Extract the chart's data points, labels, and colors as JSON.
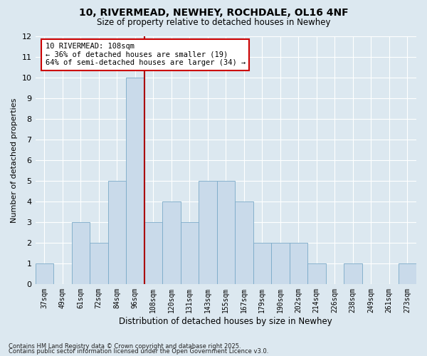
{
  "title1": "10, RIVERMEAD, NEWHEY, ROCHDALE, OL16 4NF",
  "title2": "Size of property relative to detached houses in Newhey",
  "xlabel": "Distribution of detached houses by size in Newhey",
  "ylabel": "Number of detached properties",
  "categories": [
    "37sqm",
    "49sqm",
    "61sqm",
    "72sqm",
    "84sqm",
    "96sqm",
    "108sqm",
    "120sqm",
    "131sqm",
    "143sqm",
    "155sqm",
    "167sqm",
    "179sqm",
    "190sqm",
    "202sqm",
    "214sqm",
    "226sqm",
    "238sqm",
    "249sqm",
    "261sqm",
    "273sqm"
  ],
  "values": [
    1,
    0,
    3,
    2,
    5,
    10,
    3,
    4,
    3,
    5,
    5,
    4,
    2,
    2,
    2,
    1,
    0,
    1,
    0,
    0,
    1
  ],
  "bar_color": "#c9daea",
  "bar_edgecolor": "#7aaac8",
  "vline_index": 5,
  "vline_color": "#aa0000",
  "annotation_title": "10 RIVERMEAD: 108sqm",
  "annotation_line1": "← 36% of detached houses are smaller (19)",
  "annotation_line2": "64% of semi-detached houses are larger (34) →",
  "annotation_box_facecolor": "#ffffff",
  "annotation_box_edgecolor": "#cc0000",
  "ylim": [
    0,
    12
  ],
  "yticks": [
    0,
    1,
    2,
    3,
    4,
    5,
    6,
    7,
    8,
    9,
    10,
    11,
    12
  ],
  "bg_color": "#dce8f0",
  "grid_color": "#ffffff",
  "footnote1": "Contains HM Land Registry data © Crown copyright and database right 2025.",
  "footnote2": "Contains public sector information licensed under the Open Government Licence v3.0."
}
